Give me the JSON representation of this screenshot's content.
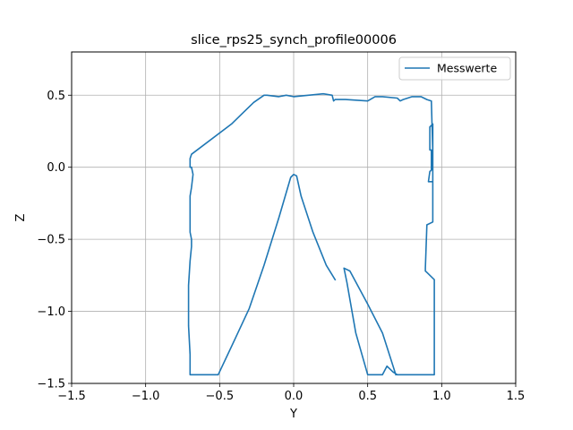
{
  "chart_data": {
    "type": "line",
    "title": "slice_rps25_synch_profile00006",
    "xlabel": "Y",
    "ylabel": "Z",
    "xlim": [
      -1.5,
      1.5
    ],
    "ylim": [
      -1.5,
      0.8
    ],
    "xticks": [
      -1.5,
      -1.0,
      -0.5,
      0.0,
      0.5,
      1.0,
      1.5
    ],
    "xtick_labels": [
      "−1.5",
      "−1.0",
      "−0.5",
      "0.0",
      "0.5",
      "1.0",
      "1.5"
    ],
    "yticks": [
      -1.5,
      -1.0,
      -0.5,
      0.0,
      0.5
    ],
    "ytick_labels": [
      "−1.5",
      "−1.0",
      "−0.5",
      "0.0",
      "0.5"
    ],
    "grid": true,
    "legend_position": "top-right",
    "series": [
      {
        "name": "Messwerte",
        "color": "#1f77b4",
        "x": [
          0.28,
          0.22,
          0.13,
          0.05,
          0.02,
          0.0,
          -0.02,
          -0.1,
          -0.2,
          -0.3,
          -0.4,
          -0.51,
          -0.55,
          -0.63,
          -0.7,
          -0.7,
          -0.71,
          -0.71,
          -0.71,
          -0.71,
          -0.7,
          -0.69,
          -0.69,
          -0.7,
          -0.7,
          -0.7,
          -0.7,
          -0.69,
          -0.68,
          -0.69,
          -0.7,
          -0.7,
          -0.69,
          -0.42,
          -0.35,
          -0.27,
          -0.2,
          -0.18,
          -0.1,
          -0.05,
          -0.0,
          0.1,
          0.2,
          0.26,
          0.27,
          0.28,
          0.35,
          0.5,
          0.55,
          0.6,
          0.7,
          0.72,
          0.74,
          0.8,
          0.86,
          0.9,
          0.93,
          0.94,
          0.94,
          0.91,
          0.92,
          0.93,
          0.93,
          0.92,
          0.92,
          0.94,
          0.94,
          0.9,
          0.89,
          0.89,
          0.9,
          0.95,
          0.95,
          0.7,
          0.67,
          0.63,
          0.6,
          0.5,
          0.42,
          0.36,
          0.34,
          0.38,
          0.5,
          0.6,
          0.69
        ],
        "y": [
          -0.78,
          -0.68,
          -0.45,
          -0.2,
          -0.06,
          -0.05,
          -0.07,
          -0.35,
          -0.68,
          -0.98,
          -1.2,
          -1.44,
          -1.44,
          -1.44,
          -1.44,
          -1.3,
          -1.1,
          -0.9,
          -0.84,
          -0.82,
          -0.65,
          -0.55,
          -0.5,
          -0.45,
          -0.32,
          -0.3,
          -0.2,
          -0.14,
          -0.05,
          0.0,
          0.0,
          0.06,
          0.09,
          0.3,
          0.37,
          0.45,
          0.5,
          0.5,
          0.49,
          0.5,
          0.49,
          0.5,
          0.51,
          0.5,
          0.46,
          0.47,
          0.47,
          0.46,
          0.49,
          0.49,
          0.48,
          0.46,
          0.47,
          0.49,
          0.49,
          0.47,
          0.46,
          0.1,
          -0.1,
          -0.1,
          -0.03,
          -0.02,
          0.12,
          0.12,
          0.28,
          0.3,
          -0.38,
          -0.4,
          -0.7,
          -0.72,
          -0.73,
          -0.78,
          -1.44,
          -1.44,
          -1.42,
          -1.38,
          -1.44,
          -1.44,
          -1.15,
          -0.8,
          -0.7,
          -0.72,
          -0.95,
          -1.15,
          -1.44
        ]
      }
    ]
  }
}
